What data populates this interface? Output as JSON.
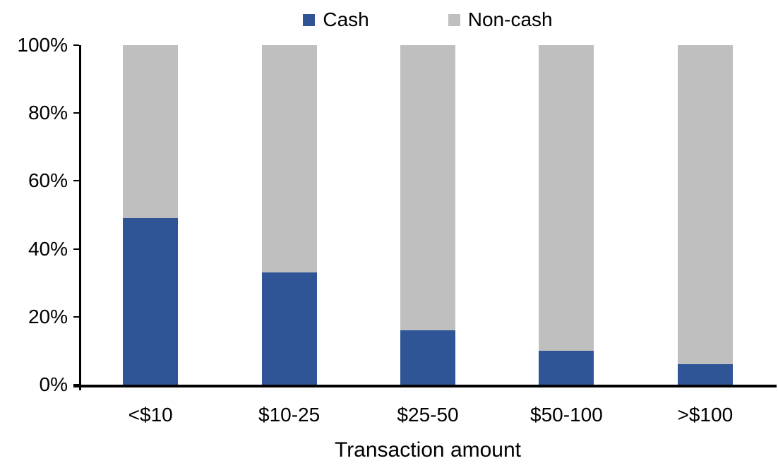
{
  "chart_data": {
    "type": "bar",
    "stacked": true,
    "stack_total": 100,
    "title": "",
    "xlabel": "Transaction amount",
    "ylabel": "",
    "ylim": [
      0,
      100
    ],
    "grid": false,
    "legend_position": "top",
    "categories": [
      "<$10",
      "$10-25",
      "$25-50",
      "$50-100",
      ">$100"
    ],
    "series": [
      {
        "name": "Cash",
        "color": "#2F5597",
        "values": [
          49,
          33,
          16,
          10,
          6
        ]
      },
      {
        "name": "Non-cash",
        "color": "#BFBFBF",
        "values": [
          51,
          67,
          84,
          90,
          94
        ]
      }
    ],
    "y_ticks": [
      0,
      20,
      40,
      60,
      80,
      100
    ],
    "y_tick_labels": [
      "0%",
      "20%",
      "40%",
      "60%",
      "80%",
      "100%"
    ],
    "axis_color": "#000000",
    "text_color": "#000000"
  }
}
